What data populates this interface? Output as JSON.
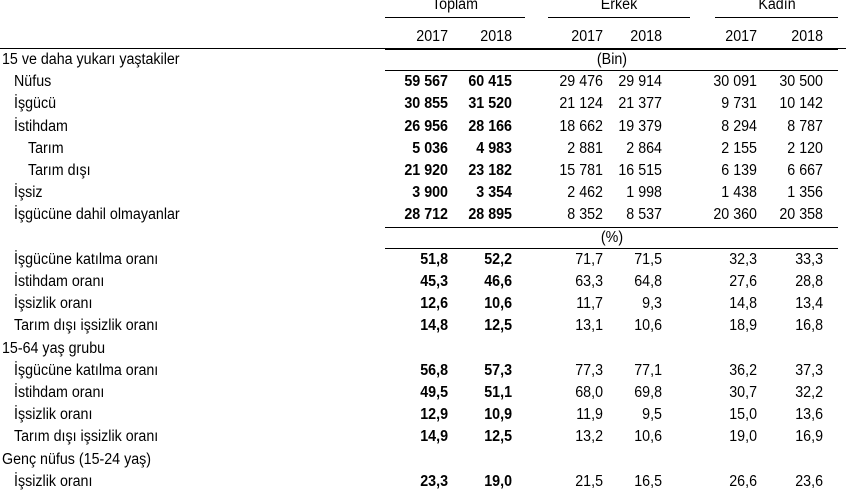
{
  "header": {
    "groups": [
      "Toplam",
      "Erkek",
      "Kadın"
    ],
    "years": [
      "2017",
      "2018"
    ]
  },
  "rows": [
    {
      "label": "15 ve daha yukarı yaştakiler",
      "kind": "section",
      "note": "(Bin)"
    },
    {
      "label": "Nüfus",
      "values": [
        "59 567",
        "60 415",
        "29 476",
        "29 914",
        "30 091",
        "30 500"
      ]
    },
    {
      "label": "İşgücü",
      "values": [
        "30 855",
        "31 520",
        "21 124",
        "21 377",
        "9 731",
        "10 142"
      ]
    },
    {
      "label": "İstihdam",
      "values": [
        "26 956",
        "28 166",
        "18 662",
        "19 379",
        "8 294",
        "8 787"
      ]
    },
    {
      "label": "Tarım",
      "indent": 2,
      "values": [
        "5 036",
        "4 983",
        "2 881",
        "2 864",
        "2 155",
        "2 120"
      ]
    },
    {
      "label": "Tarım dışı",
      "indent": 2,
      "values": [
        "21 920",
        "23 182",
        "15 781",
        "16 515",
        "6 139",
        "6 667"
      ]
    },
    {
      "label": "İşsiz",
      "values": [
        "3 900",
        "3 354",
        "2 462",
        "1 998",
        "1 438",
        "1 356"
      ]
    },
    {
      "label": "İşgücüne dahil olmayanlar",
      "values": [
        "28 712",
        "28 895",
        "8 352",
        "8 537",
        "20 360",
        "20 358"
      ]
    },
    {
      "kind": "note-row",
      "note": "(%)"
    },
    {
      "label": "İşgücüne katılma oranı",
      "values": [
        "51,8",
        "52,2",
        "71,7",
        "71,5",
        "32,3",
        "33,3"
      ]
    },
    {
      "label": "İstihdam oranı",
      "values": [
        "45,3",
        "46,6",
        "63,3",
        "64,8",
        "27,6",
        "28,8"
      ]
    },
    {
      "label": "İşsizlik oranı",
      "values": [
        "12,6",
        "10,6",
        "11,7",
        "9,3",
        "14,8",
        "13,4"
      ]
    },
    {
      "label": "Tarım dışı işsizlik oranı",
      "values": [
        "14,8",
        "12,5",
        "13,1",
        "10,6",
        "18,9",
        "16,8"
      ]
    },
    {
      "label": "15-64 yaş grubu",
      "kind": "section"
    },
    {
      "label": "İşgücüne katılma oranı",
      "values": [
        "56,8",
        "57,3",
        "77,3",
        "77,1",
        "36,2",
        "37,3"
      ]
    },
    {
      "label": "İstihdam oranı",
      "values": [
        "49,5",
        "51,1",
        "68,0",
        "69,8",
        "30,7",
        "32,2"
      ]
    },
    {
      "label": "İşsizlik oranı",
      "values": [
        "12,9",
        "10,9",
        "11,9",
        "9,5",
        "15,0",
        "13,6"
      ]
    },
    {
      "label": "Tarım dışı işsizlik oranı",
      "values": [
        "14,9",
        "12,5",
        "13,2",
        "10,6",
        "19,0",
        "16,9"
      ]
    },
    {
      "label": "Genç nüfus (15-24 yaş)",
      "kind": "section"
    },
    {
      "label": "İşsizlik oranı",
      "values": [
        "23,3",
        "19,0",
        "21,5",
        "16,5",
        "26,6",
        "23,6"
      ]
    }
  ]
}
